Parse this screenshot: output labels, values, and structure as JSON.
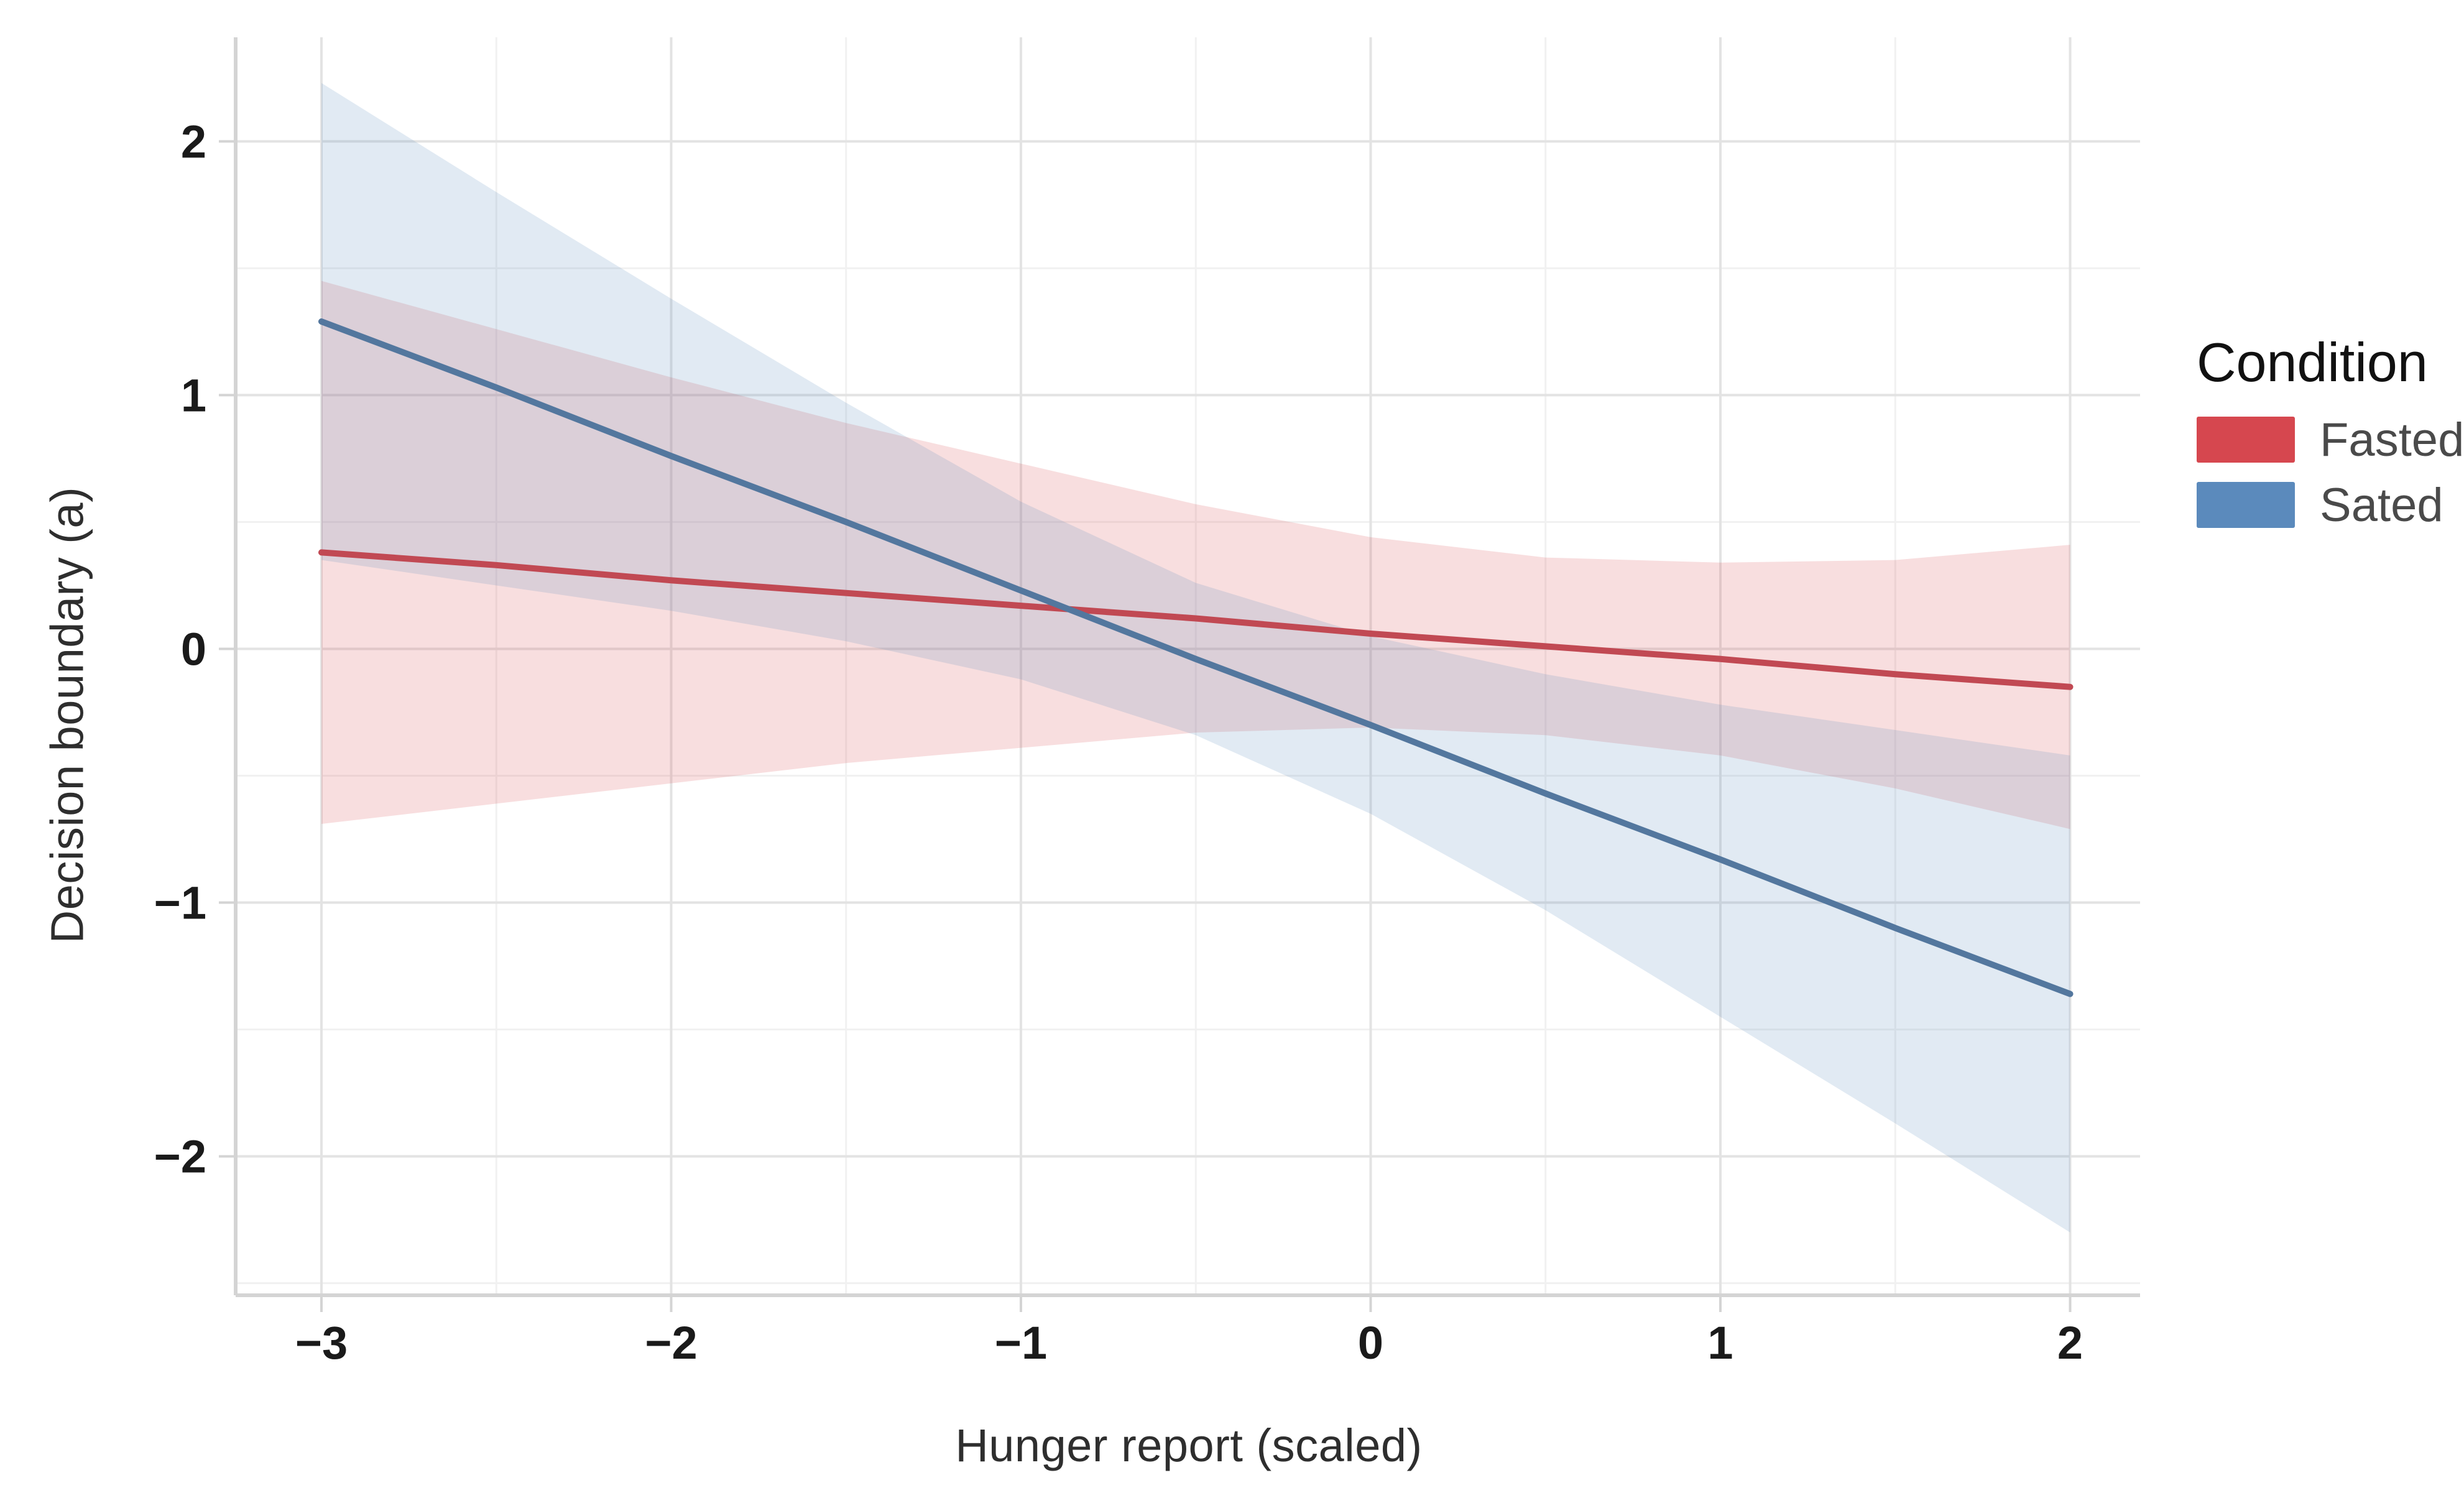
{
  "figure": {
    "background_color": "#ffffff",
    "x_axis_title": "Hunger report (scaled)",
    "y_axis_title": "Decision boundary (a)"
  },
  "legend": {
    "title": "Condition",
    "items": [
      {
        "label": "Fasted",
        "color": "#d6474f"
      },
      {
        "label": "Sated",
        "color": "#5b8abc"
      }
    ]
  },
  "chart_data": {
    "type": "line",
    "title": "",
    "xlabel": "Hunger report (scaled)",
    "ylabel": "Decision boundary (a)",
    "xlim": [
      -3.24,
      2.2
    ],
    "ylim": [
      -2.54,
      2.41
    ],
    "x_ticks": [
      -3,
      -2,
      -1,
      0,
      1,
      2
    ],
    "y_ticks": [
      -2,
      -1,
      0,
      1,
      2
    ],
    "x_minor_ticks": [
      -2.5,
      -1.5,
      -0.5,
      0.5,
      1.5
    ],
    "y_minor_ticks": [
      -2.5,
      -1.5,
      -0.5,
      0.5,
      1.5
    ],
    "grid": "on",
    "legend_position": "right",
    "legend_title": "Condition",
    "x": [
      -3,
      -2.5,
      -2,
      -1.5,
      -1,
      -0.5,
      0,
      0.5,
      1,
      1.5,
      2
    ],
    "series": [
      {
        "name": "Fasted",
        "color": "#d6474f",
        "line_color": "#c14953",
        "band_opacity": 0.18,
        "y": [
          0.38,
          0.33,
          0.27,
          0.22,
          0.17,
          0.12,
          0.06,
          0.01,
          -0.04,
          -0.1,
          -0.15
        ],
        "ci_upper": [
          1.45,
          1.26,
          1.07,
          0.89,
          0.73,
          0.57,
          0.44,
          0.36,
          0.34,
          0.35,
          0.41
        ],
        "ci_lower": [
          -0.69,
          -0.61,
          -0.53,
          -0.45,
          -0.39,
          -0.33,
          -0.31,
          -0.34,
          -0.42,
          -0.55,
          -0.71
        ]
      },
      {
        "name": "Sated",
        "color": "#5b8abc",
        "line_color": "#53779e",
        "band_opacity": 0.18,
        "y": [
          1.29,
          1.03,
          0.76,
          0.5,
          0.23,
          -0.04,
          -0.3,
          -0.57,
          -0.83,
          -1.1,
          -1.36
        ],
        "ci_upper": [
          2.23,
          1.8,
          1.38,
          0.97,
          0.58,
          0.26,
          0.05,
          -0.1,
          -0.22,
          -0.32,
          -0.42
        ],
        "ci_lower": [
          0.35,
          0.25,
          0.15,
          0.03,
          -0.12,
          -0.34,
          -0.65,
          -1.03,
          -1.45,
          -1.87,
          -2.3
        ]
      }
    ],
    "style_colors": {
      "grid_major": "#e3e3e3",
      "grid_minor": "#f1f1f1",
      "axis_line": "#d4d4d4",
      "tick_mark": "#d4d4d4",
      "tick_label": "#1a1a1a",
      "axis_title": "#2e2e2e",
      "legend_label": "#4a4a4a"
    }
  }
}
